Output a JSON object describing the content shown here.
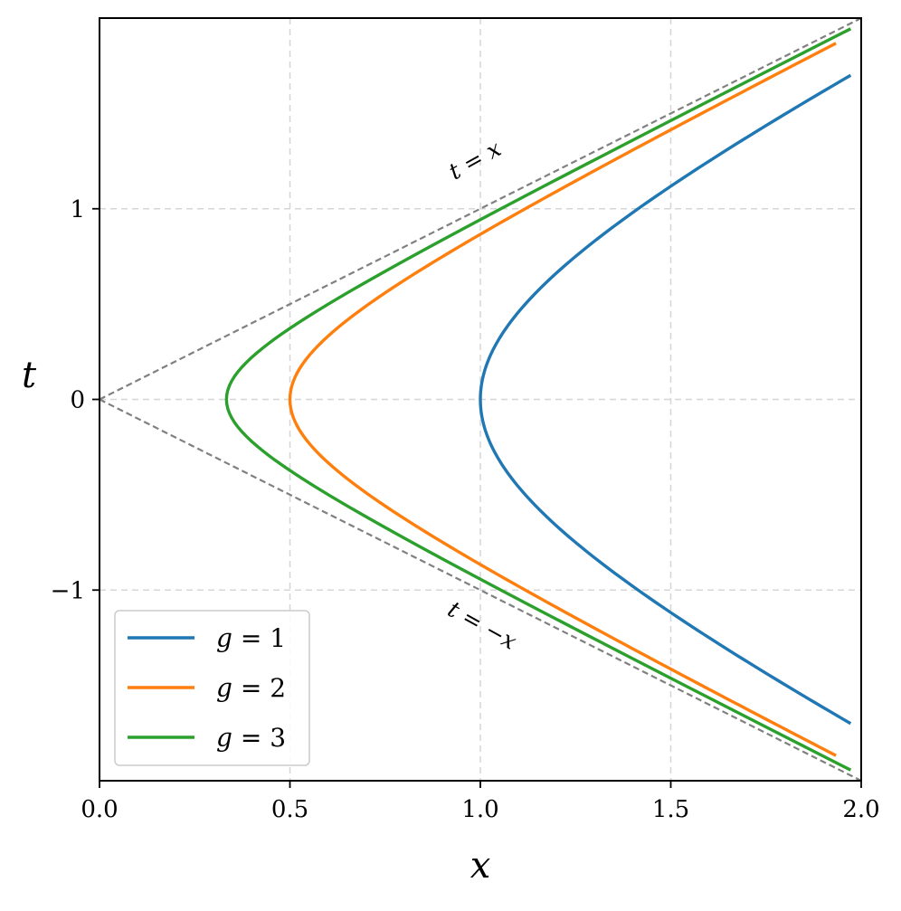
{
  "chart_data": {
    "type": "line",
    "title": "",
    "xlabel": "x",
    "ylabel": "t",
    "xlim": [
      0,
      2
    ],
    "ylim": [
      -2,
      2
    ],
    "xticks": [
      {
        "value": 0.0,
        "label": "0.0"
      },
      {
        "value": 0.5,
        "label": "0.5"
      },
      {
        "value": 1.0,
        "label": "1.0"
      },
      {
        "value": 1.5,
        "label": "1.5"
      },
      {
        "value": 2.0,
        "label": "2.0"
      }
    ],
    "yticks": [
      {
        "value": -1,
        "label": "−1"
      },
      {
        "value": 0,
        "label": "0"
      },
      {
        "value": 1,
        "label": "1"
      }
    ],
    "grid": true,
    "legend": {
      "placement": "lower-left"
    },
    "series": [
      {
        "name": "g = 1",
        "name_var": "g",
        "name_op": " = ",
        "name_val": "1",
        "color": "#1f77b4",
        "x": [
          1.7436,
          1.5,
          1.3,
          1.1,
          1.0,
          1.1,
          1.3,
          1.5,
          1.7436
        ],
        "y": [
          -1.7,
          -1.118,
          -0.831,
          -0.458,
          0,
          0.458,
          0.831,
          1.118,
          1.7
        ]
      },
      {
        "name": "g = 2",
        "name_var": "g",
        "name_op": " = ",
        "name_val": "2",
        "color": "#ff7f0e",
        "x": [
          1.9339,
          1.5,
          1.0,
          0.7,
          0.5,
          0.7,
          1.0,
          1.5,
          1.9339
        ],
        "y": [
          -1.868,
          -1.414,
          -0.866,
          -0.49,
          0,
          0.49,
          0.866,
          1.414,
          1.868
        ]
      },
      {
        "name": "g = 3",
        "name_var": "g",
        "name_op": " = ",
        "name_val": "3",
        "color": "#2ca02c",
        "x": [
          1.9723,
          1.5,
          1.0,
          0.5,
          0.3333,
          0.5,
          1.0,
          1.5,
          1.9723
        ],
        "y": [
          -1.944,
          -1.462,
          -0.943,
          -0.373,
          0,
          0.373,
          0.943,
          1.462,
          1.944
        ]
      }
    ],
    "reference_lines": [
      {
        "label": "t = x",
        "slope": 1,
        "color": "#808080"
      },
      {
        "label": "t = −x",
        "slope": -1,
        "color": "#808080"
      }
    ],
    "annotations": [
      {
        "text": "t = x",
        "x": 1.0,
        "y": 1.22,
        "angle_deg": -29
      },
      {
        "text": "t = −x",
        "x": 1.0,
        "y": -1.22,
        "angle_deg": 29
      }
    ]
  }
}
